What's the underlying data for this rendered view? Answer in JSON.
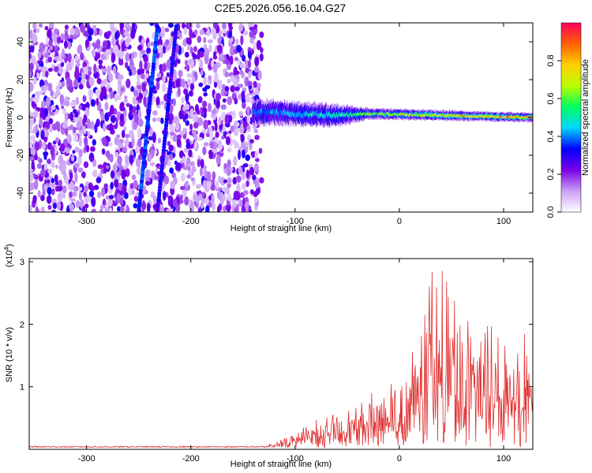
{
  "title": "C2E5.2026.056.16.04.G27",
  "chart_data": [
    {
      "type": "heatmap",
      "name": "spectrogram",
      "xlabel": "Height of straight line (km)",
      "ylabel": "Frequency (Hz)",
      "xlim": [
        -355,
        128
      ],
      "ylim": [
        -50,
        50
      ],
      "xticks": [
        -300,
        -200,
        -100,
        0,
        100
      ],
      "yticks": [
        -40,
        -20,
        0,
        20,
        40
      ],
      "xtick_labels": [
        "-300",
        "-200",
        "-100",
        "0",
        "100"
      ],
      "ytick_labels": [
        "-40",
        "-20",
        "0",
        "20",
        "40"
      ],
      "colorbar": {
        "label": "Normalized spectral amplitude",
        "range": [
          0,
          1
        ],
        "ticks": [
          0.0,
          0.2,
          0.4,
          0.6,
          0.8
        ],
        "tick_labels": [
          "0.0",
          "0.2",
          "0.4",
          "0.6",
          "0.8"
        ],
        "colormap": [
          "#ffffff",
          "#c9a0f5",
          "#7a00e6",
          "#0000ff",
          "#00d5ff",
          "#00ff60",
          "#b8ff00",
          "#ffd000",
          "#ff6000",
          "#ff0060"
        ]
      },
      "noise_region_x": [
        -355,
        -132
      ],
      "noise_density_amplitude": 0.15,
      "streaks": [
        {
          "x_at_freq": [
            [
              -250,
              -50
            ],
            [
              -232,
              48
            ]
          ],
          "amplitude": 0.35
        },
        {
          "x_at_freq": [
            [
              -232,
              -50
            ],
            [
              -214,
              48
            ]
          ],
          "amplitude": 0.3
        }
      ],
      "signal_band": {
        "x_range": [
          -140,
          128
        ],
        "center_freq": [
          [
            -140,
            3
          ],
          [
            -60,
            1
          ],
          [
            -30,
            2
          ],
          [
            128,
            0
          ]
        ],
        "half_width_hz": [
          [
            -140,
            7
          ],
          [
            -60,
            6
          ],
          [
            -30,
            3
          ],
          [
            128,
            2.5
          ]
        ],
        "peak_amplitude": [
          [
            -140,
            0.45
          ],
          [
            -60,
            0.55
          ],
          [
            -30,
            0.7
          ],
          [
            128,
            0.95
          ]
        ]
      }
    },
    {
      "type": "line",
      "name": "snr",
      "xlabel": "Height of straight line (km)",
      "ylabel": "SNR (10 * v/v)",
      "exponent_label": "(x10",
      "exponent_sup": "4",
      "exponent_close": ")",
      "xlim": [
        -355,
        128
      ],
      "ylim": [
        0,
        3.05
      ],
      "xticks": [
        -300,
        -200,
        -100,
        0,
        100
      ],
      "yticks": [
        1,
        2,
        3
      ],
      "xtick_labels": [
        "-300",
        "-200",
        "-100",
        "0",
        "100"
      ],
      "ytick_labels": [
        "1",
        "2",
        "3"
      ],
      "color": "#e03030",
      "baseline": 0.03,
      "envelope": [
        {
          "x": -355,
          "y": 0.05
        },
        {
          "x": -120,
          "y": 0.06
        },
        {
          "x": -100,
          "y": 0.3
        },
        {
          "x": -80,
          "y": 0.45
        },
        {
          "x": -60,
          "y": 0.55
        },
        {
          "x": -40,
          "y": 0.7
        },
        {
          "x": -20,
          "y": 1.0
        },
        {
          "x": 0,
          "y": 1.3
        },
        {
          "x": 20,
          "y": 1.9
        },
        {
          "x": 30,
          "y": 3.0
        },
        {
          "x": 45,
          "y": 2.8
        },
        {
          "x": 60,
          "y": 2.3
        },
        {
          "x": 80,
          "y": 2.0
        },
        {
          "x": 100,
          "y": 1.9
        },
        {
          "x": 128,
          "y": 1.9
        }
      ]
    }
  ]
}
